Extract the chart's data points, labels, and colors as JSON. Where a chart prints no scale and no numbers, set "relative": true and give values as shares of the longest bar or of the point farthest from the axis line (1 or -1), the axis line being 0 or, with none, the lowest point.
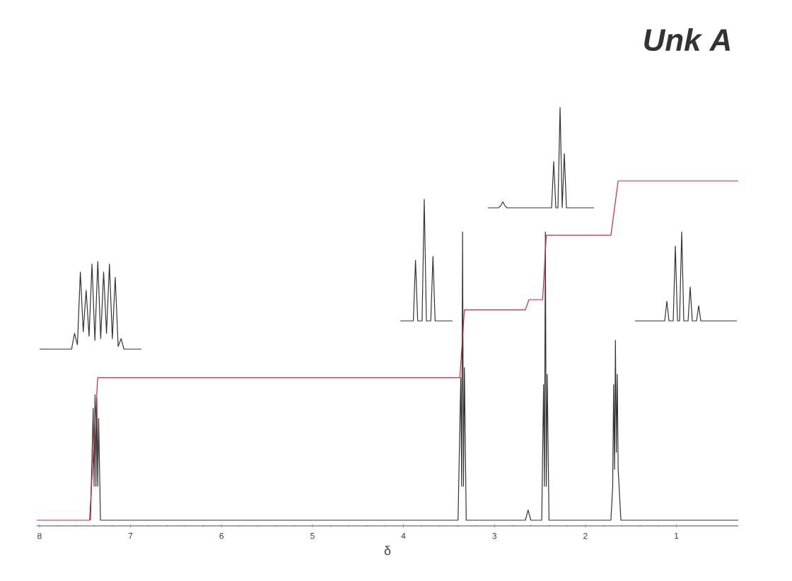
{
  "chart_data": [
    {
      "type": "line",
      "title": "Unk A",
      "xlabel": "δ",
      "relative": true,
      "xlim": [
        8.03,
        0.32
      ],
      "xticks": [
        8,
        7,
        6,
        5,
        4,
        3,
        2,
        1
      ],
      "series": [
        {
          "color": "#333333",
          "x": [
            7.44,
            7.41,
            7.4,
            7.39,
            7.38,
            7.37,
            7.36,
            7.35,
            7.33,
            3.4,
            3.37,
            3.36,
            3.35,
            3.34,
            3.33,
            3.31,
            2.66,
            2.63,
            2.6,
            2.48,
            2.46,
            2.45,
            2.44,
            2.43,
            2.42,
            2.4,
            1.72,
            1.7,
            1.69,
            1.68,
            1.67,
            1.66,
            1.65,
            1.64,
            1.63,
            1.61,
            0.32
          ],
          "values": [
            0,
            0.33,
            0.1,
            0.37,
            0.1,
            0.36,
            0.1,
            0.3,
            0,
            0,
            0.42,
            0.1,
            0.85,
            0.1,
            0.45,
            0,
            0,
            0.03,
            0,
            0,
            0.4,
            0.1,
            0.85,
            0.1,
            0.43,
            0,
            0,
            0.1,
            0.4,
            0.15,
            0.53,
            0.2,
            0.43,
            0.15,
            0.1,
            0,
            0
          ]
        },
        {
          "color": "#c8283c",
          "x": [
            8.03,
            7.45,
            7.36,
            3.38,
            3.33,
            2.66,
            2.62,
            2.47,
            2.43,
            1.72,
            1.64,
            0.32
          ],
          "values": [
            0,
            0,
            0.42,
            0.42,
            0.62,
            0.62,
            0.65,
            0.65,
            0.84,
            0.84,
            1.0,
            1.0
          ]
        }
      ]
    },
    {
      "type": "line",
      "relative": true,
      "categories": [
        null,
        null,
        null,
        null,
        null,
        null,
        null,
        null,
        null,
        null,
        null,
        null,
        null,
        null,
        null,
        null,
        null,
        null,
        null,
        null,
        null,
        null,
        null,
        null,
        null,
        null,
        null,
        null,
        null,
        null,
        null,
        null,
        null,
        null,
        null,
        null
      ],
      "series": [
        {
          "color": "#333333",
          "values": [
            0,
            0,
            0,
            0,
            0,
            0,
            0,
            0,
            0,
            0,
            0,
            0,
            0.18,
            0.05,
            0.88,
            0.2,
            0.67,
            0.15,
            0.97,
            0.1,
            1.0,
            0.12,
            0.88,
            0.18,
            0.97,
            0.12,
            0.82,
            0.03,
            0.12,
            0,
            0,
            0,
            0,
            0,
            0,
            0
          ]
        }
      ]
    },
    {
      "type": "line",
      "relative": true,
      "categories": [
        null,
        null,
        null,
        null,
        null,
        null,
        null,
        null,
        null,
        null,
        null,
        null,
        null,
        null,
        null,
        null,
        null,
        null,
        null,
        null,
        null,
        null,
        null,
        null,
        null
      ],
      "series": [
        {
          "color": "#333333",
          "values": [
            0,
            0,
            0,
            0,
            0,
            0,
            0,
            0.5,
            0,
            0,
            0,
            1.0,
            0,
            0,
            0,
            0.53,
            0,
            0,
            0,
            0,
            0,
            0,
            0,
            0,
            0
          ]
        }
      ]
    },
    {
      "type": "line",
      "relative": true,
      "categories": [
        null,
        null,
        null,
        null,
        null,
        null,
        null,
        null,
        null,
        null,
        null,
        null,
        null,
        null,
        null,
        null,
        null,
        null,
        null,
        null,
        null,
        null,
        null,
        null,
        null,
        null,
        null,
        null,
        null,
        null,
        null,
        null,
        null,
        null,
        null,
        null,
        null,
        null,
        null,
        null,
        null,
        null,
        null,
        null,
        null,
        null,
        null,
        null,
        null,
        null,
        null
      ],
      "series": [
        {
          "color": "#333333",
          "values": [
            0,
            0,
            0,
            0,
            0,
            0,
            0.02,
            0.06,
            0.02,
            0,
            0,
            0,
            0,
            0,
            0,
            0,
            0,
            0,
            0,
            0,
            0,
            0,
            0,
            0,
            0,
            0,
            0,
            0,
            0,
            0,
            0,
            0.46,
            0,
            0,
            1.0,
            0,
            0.54,
            0,
            0,
            0,
            0,
            0,
            0,
            0,
            0,
            0,
            0,
            0,
            0,
            0,
            0
          ]
        }
      ]
    },
    {
      "type": "line",
      "relative": true,
      "categories": [
        null,
        null,
        null,
        null,
        null,
        null,
        null,
        null,
        null,
        null,
        null,
        null,
        null,
        null,
        null,
        null,
        null,
        null,
        null,
        null,
        null,
        null,
        null,
        null,
        null,
        null,
        null,
        null,
        null,
        null,
        null,
        null,
        null,
        null,
        null,
        null,
        null,
        null,
        null,
        null,
        null,
        null,
        null,
        null,
        null,
        null,
        null,
        null,
        null
      ],
      "series": [
        {
          "color": "#333333",
          "values": [
            0,
            0,
            0,
            0,
            0,
            0,
            0,
            0,
            0,
            0,
            0,
            0,
            0,
            0,
            0,
            0.22,
            0,
            0,
            0,
            0.84,
            0,
            0,
            1.0,
            0,
            0,
            0,
            0.38,
            0,
            0,
            0,
            0.17,
            0,
            0,
            0,
            0,
            0,
            0,
            0,
            0,
            0,
            0,
            0,
            0,
            0,
            0,
            0,
            0,
            0,
            0
          ]
        }
      ]
    }
  ]
}
